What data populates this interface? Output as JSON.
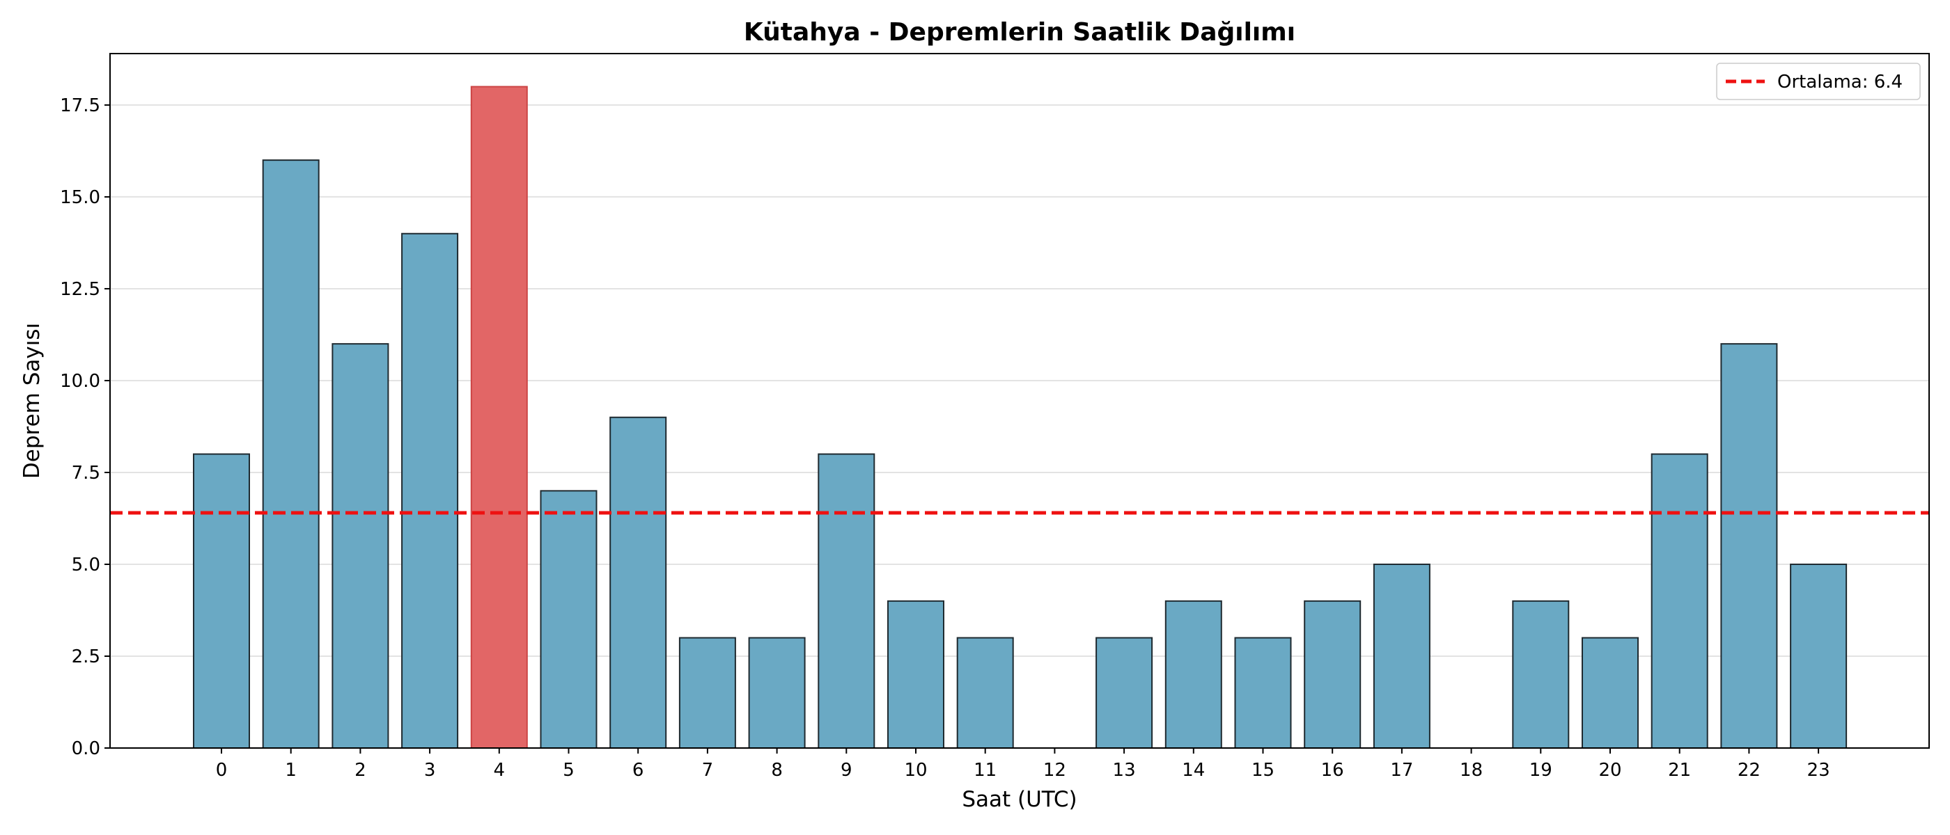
{
  "chart_data": {
    "type": "bar",
    "title": "Kütahya - Depremlerin Saatlik Dağılımı",
    "xlabel": "Saat (UTC)",
    "ylabel": "Deprem Sayısı",
    "categories": [
      "0",
      "1",
      "2",
      "3",
      "4",
      "5",
      "6",
      "7",
      "8",
      "9",
      "10",
      "11",
      "12",
      "13",
      "14",
      "15",
      "16",
      "17",
      "18",
      "19",
      "20",
      "21",
      "22",
      "23"
    ],
    "values": [
      8,
      16,
      11,
      14,
      18,
      7,
      9,
      3,
      3,
      8,
      4,
      3,
      0,
      3,
      4,
      3,
      4,
      5,
      0,
      4,
      3,
      8,
      11,
      5
    ],
    "highlight_index": 4,
    "ylim": [
      0,
      18.9
    ],
    "yticks": [
      "0.0",
      "2.5",
      "5.0",
      "7.5",
      "10.0",
      "12.5",
      "15.0",
      "17.5"
    ],
    "ytick_values": [
      0,
      2.5,
      5,
      7.5,
      10,
      12.5,
      15,
      17.5
    ],
    "reference_line": {
      "value": 6.4,
      "label": "Ortalama: 6.4",
      "color": "#ee1111",
      "style": "dashed"
    },
    "grid": "y",
    "legend_position": "top-right",
    "colors": {
      "bar": "#6aa9c4",
      "highlight": "#e26666",
      "edge": "#1f2a30"
    }
  }
}
